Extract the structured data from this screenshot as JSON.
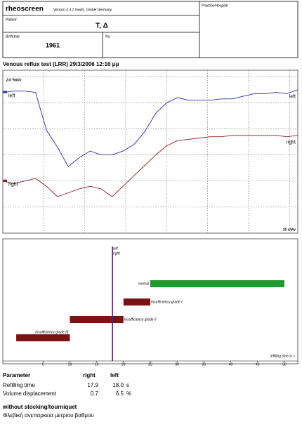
{
  "header": {
    "app": "rheoscreen",
    "version": "Version 4.3.1 medis. GmbH Germany",
    "practice_label": "Practice/Hospital",
    "patient_label": "Patient",
    "patient": "T, Δ",
    "birthdate_label": "Birthdate",
    "birthdate": "1961",
    "no_label": "No."
  },
  "test_title": "Venous reflux test (LRR) 29/3/2006 12:16 μμ",
  "chart_data": [
    {
      "type": "line",
      "y_scale_label": "2.0 %/div",
      "x_scale_label": "15 s/div",
      "x": [
        0,
        4,
        8,
        12,
        16,
        20,
        24,
        28,
        32,
        36,
        40,
        44,
        48,
        52,
        56,
        60,
        64,
        68,
        72,
        76,
        80,
        84,
        88,
        92,
        96,
        100,
        104,
        108
      ],
      "xlim": [
        0,
        108
      ],
      "ylim": [
        0,
        12.5
      ],
      "xticks": [
        15,
        30,
        45,
        60,
        75,
        90,
        105
      ],
      "yticks": [
        2,
        4,
        6,
        8,
        10,
        12
      ],
      "grid": true,
      "series": [
        {
          "name": "left",
          "color": "#2a2aa8",
          "values": [
            10.8,
            10.9,
            10.9,
            10.8,
            7.9,
            6.6,
            5.1,
            5.8,
            6.3,
            6.0,
            6.0,
            6.3,
            6.8,
            7.8,
            9.2,
            10.0,
            10.4,
            10.2,
            10.2,
            10.2,
            10.3,
            10.3,
            10.5,
            10.7,
            10.7,
            10.8,
            10.7,
            11.0
          ]
        },
        {
          "name": "right",
          "color": "#8b1c1c",
          "values": [
            4.0,
            3.8,
            4.0,
            4.2,
            3.6,
            2.8,
            3.1,
            3.4,
            3.6,
            3.4,
            2.8,
            3.6,
            4.4,
            5.2,
            6.0,
            6.7,
            7.1,
            7.2,
            7.3,
            7.4,
            7.4,
            7.5,
            7.5,
            7.5,
            7.5,
            7.5,
            7.4,
            7.5
          ]
        }
      ]
    },
    {
      "type": "range-bar",
      "x_axis_label": "refilling time in s",
      "xlim": [
        -2.5,
        52.5
      ],
      "xticks": [
        5,
        10,
        15,
        20,
        25,
        30,
        35,
        40,
        45,
        50
      ],
      "bars": [
        {
          "label": "normal",
          "from": 25,
          "to": 50,
          "color": "#1e9a2e"
        },
        {
          "label": "Insufficiency grade I",
          "from": 20,
          "to": 25,
          "color": "#7a1414"
        },
        {
          "label": "Insufficiency grade II",
          "from": 10,
          "to": 20,
          "color": "#7a1414"
        },
        {
          "label": "Insufficiency grade III",
          "from": 0,
          "to": 10,
          "color": "#7a1414"
        }
      ],
      "markers": [
        {
          "name": "left",
          "value": 18.0,
          "color": "#2a2aa8"
        },
        {
          "name": "right",
          "value": 17.9,
          "color": "#8b1c1c"
        }
      ]
    }
  ],
  "parameters": {
    "header": [
      "Parameter",
      "right",
      "left"
    ],
    "rows": [
      [
        "Refilling time",
        "17.9",
        "18.0",
        "s"
      ],
      [
        "Volume displacement",
        "0.7",
        "6.5",
        "%"
      ]
    ]
  },
  "note": {
    "condition": "without stocking/tourniquet",
    "diagnosis": "Φλεβική ανεπαρκεια μετριου βαθμου"
  }
}
